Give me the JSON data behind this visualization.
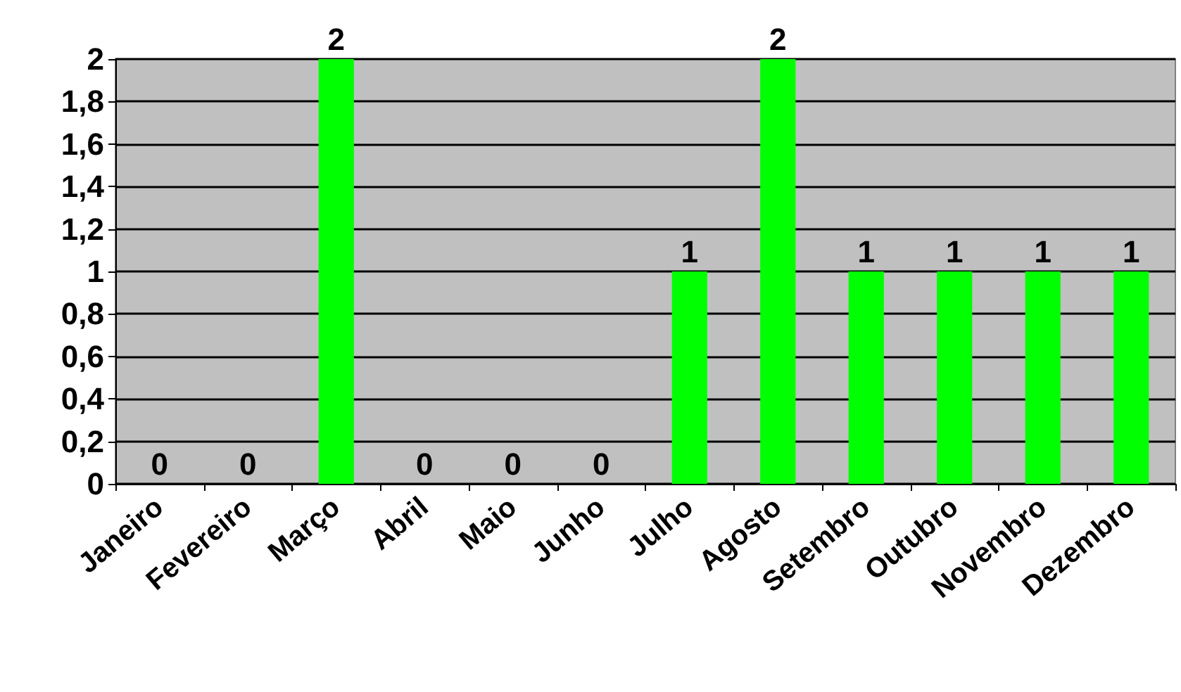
{
  "chart_data": {
    "type": "bar",
    "categories": [
      "Janeiro",
      "Fevereiro",
      "Março",
      "Abril",
      "Maio",
      "Junho",
      "Julho",
      "Agosto",
      "Setembro",
      "Outubro",
      "Novembro",
      "Dezembro"
    ],
    "values": [
      0,
      0,
      2,
      0,
      0,
      0,
      1,
      2,
      1,
      1,
      1,
      1
    ],
    "color": "#00ff00",
    "ylim": [
      0,
      2
    ],
    "yticks": [
      0,
      {
        "value": 0.2,
        "label": "0,2"
      },
      {
        "value": 0.4,
        "label": "0,4"
      },
      {
        "value": 0.6,
        "label": "0,6"
      },
      {
        "value": 0.8,
        "label": "0,8"
      },
      1,
      {
        "value": 1.2,
        "label": "1,2"
      },
      {
        "value": 1.4,
        "label": "1,4"
      },
      {
        "value": 1.6,
        "label": "1,6"
      },
      {
        "value": 1.8,
        "label": "1,8"
      },
      2
    ],
    "grid": "y",
    "data_labels": true
  }
}
